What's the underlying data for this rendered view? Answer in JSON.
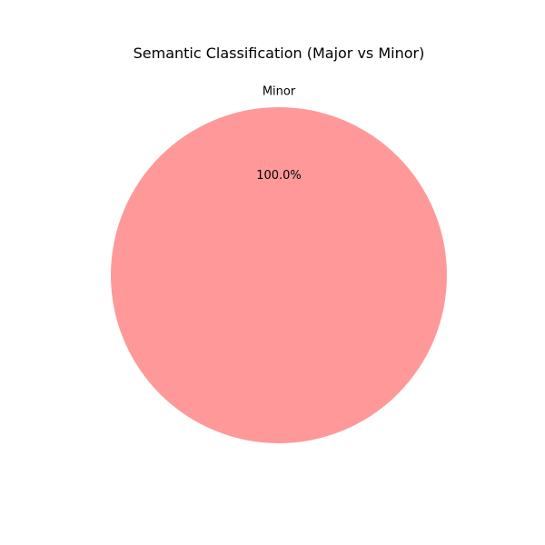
{
  "chart_data": {
    "type": "pie",
    "title": "Semantic Classification (Major vs Minor)",
    "categories": [
      "Minor"
    ],
    "values": [
      100.0
    ],
    "percent_labels": [
      "100.0%"
    ],
    "colors": [
      "#ff9999"
    ]
  }
}
